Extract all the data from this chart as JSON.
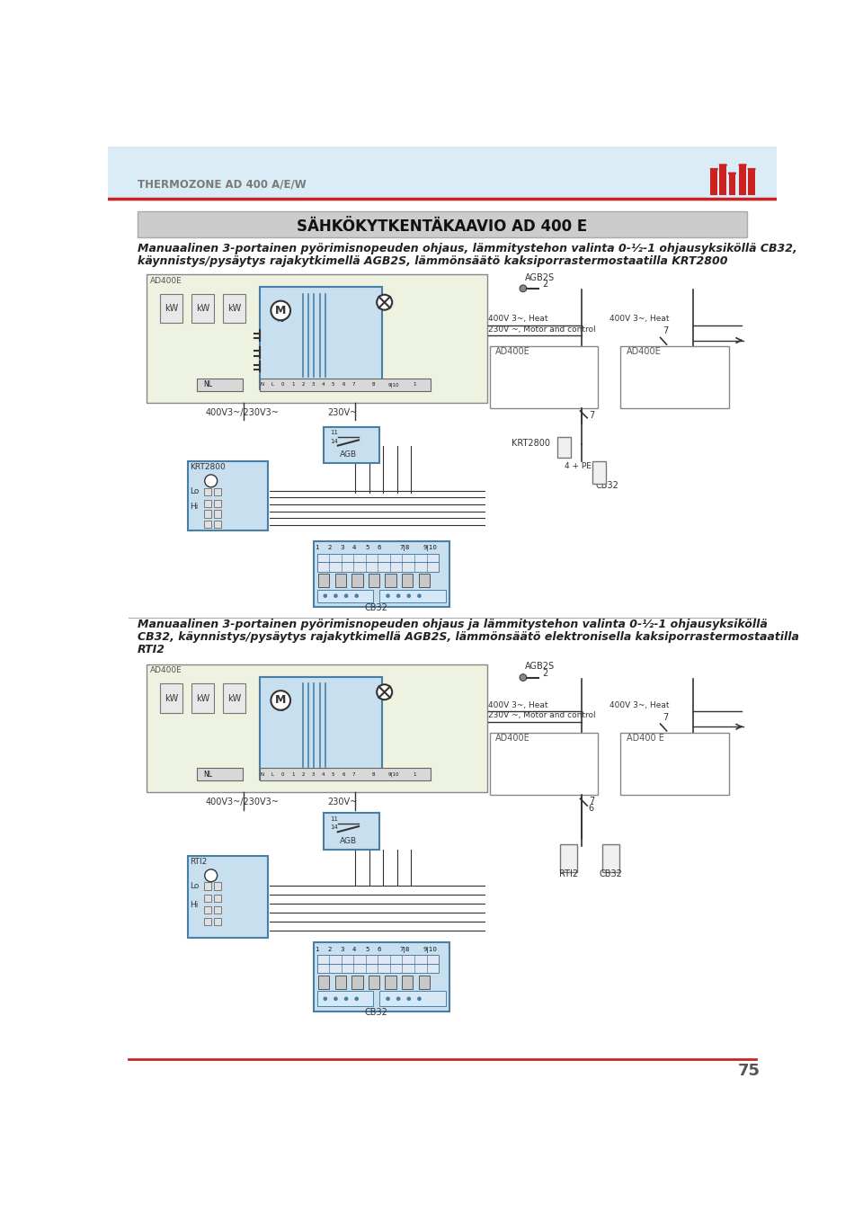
{
  "page_bg_top": "#d8ecf4",
  "page_bg_bottom": "#ffffff",
  "header_text": "THERMOZONE AD 400 A/E/W",
  "header_color": "#7a7a7a",
  "title_box_text": "SÄHKÖKYTKENTÄKAAVIO AD 400 E",
  "title_box_bg": "#cccccc",
  "title_box_border": "#aaaaaa",
  "red_line_color": "#cc2222",
  "page_number": "75",
  "d1_line1": "Manuaalinen 3-portainen pyörimisnopeuden ohjaus, lämmitystehon valinta 0-½-1 ohjausyksiköllä CB32,",
  "d1_line2": "käynnistys/pysäytys rajakytkimellä AGB2S, lämmönsäätö kaksiporrastermostaatilla KRT2800",
  "d2_line1": "Manuaalinen 3-portainen pyörimisnopeuden ohjaus ja lämmitystehon valinta 0-½-1 ohjausyksiköllä",
  "d2_line2": "CB32, käynnistys/pysäytys rajakytkimellä AGB2S, lämmönsäätö elektronisella kaksiporrastermostaatilla",
  "d2_line3": "RTI2",
  "panel_bg": "#eef2e0",
  "panel_border": "#888888",
  "blue_box_bg": "#c8dff0",
  "blue_box_border": "#4a7fa5",
  "wire_dark": "#333333",
  "wire_blue": "#4a7fa5",
  "kw_box_bg": "#e8e8e8",
  "right_box_bg": "#ffffff",
  "right_box_border": "#888888",
  "frico_red": "#cc2222",
  "text_dark": "#222222",
  "text_gray": "#666666"
}
